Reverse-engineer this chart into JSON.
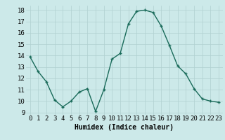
{
  "x": [
    0,
    1,
    2,
    3,
    4,
    5,
    6,
    7,
    8,
    9,
    10,
    11,
    12,
    13,
    14,
    15,
    16,
    17,
    18,
    19,
    20,
    21,
    22,
    23
  ],
  "y": [
    13.9,
    12.6,
    11.7,
    10.1,
    9.5,
    10.0,
    10.8,
    11.1,
    9.1,
    11.0,
    13.7,
    14.2,
    16.8,
    17.9,
    18.0,
    17.8,
    16.6,
    14.9,
    13.1,
    12.4,
    11.1,
    10.2,
    10.0,
    9.9
  ],
  "line_color": "#1a6b5a",
  "marker_color": "#1a6b5a",
  "bg_color": "#cce9e9",
  "grid_color": "#b0d0d0",
  "xlabel": "Humidex (Indice chaleur)",
  "ylim": [
    8.8,
    18.4
  ],
  "xlim": [
    -0.5,
    23.5
  ],
  "yticks": [
    9,
    10,
    11,
    12,
    13,
    14,
    15,
    16,
    17,
    18
  ],
  "xticks": [
    0,
    1,
    2,
    3,
    4,
    5,
    6,
    7,
    8,
    9,
    10,
    11,
    12,
    13,
    14,
    15,
    16,
    17,
    18,
    19,
    20,
    21,
    22,
    23
  ],
  "xlabel_fontsize": 7,
  "tick_fontsize": 6.5,
  "marker_size": 3.5,
  "line_width": 1.0
}
